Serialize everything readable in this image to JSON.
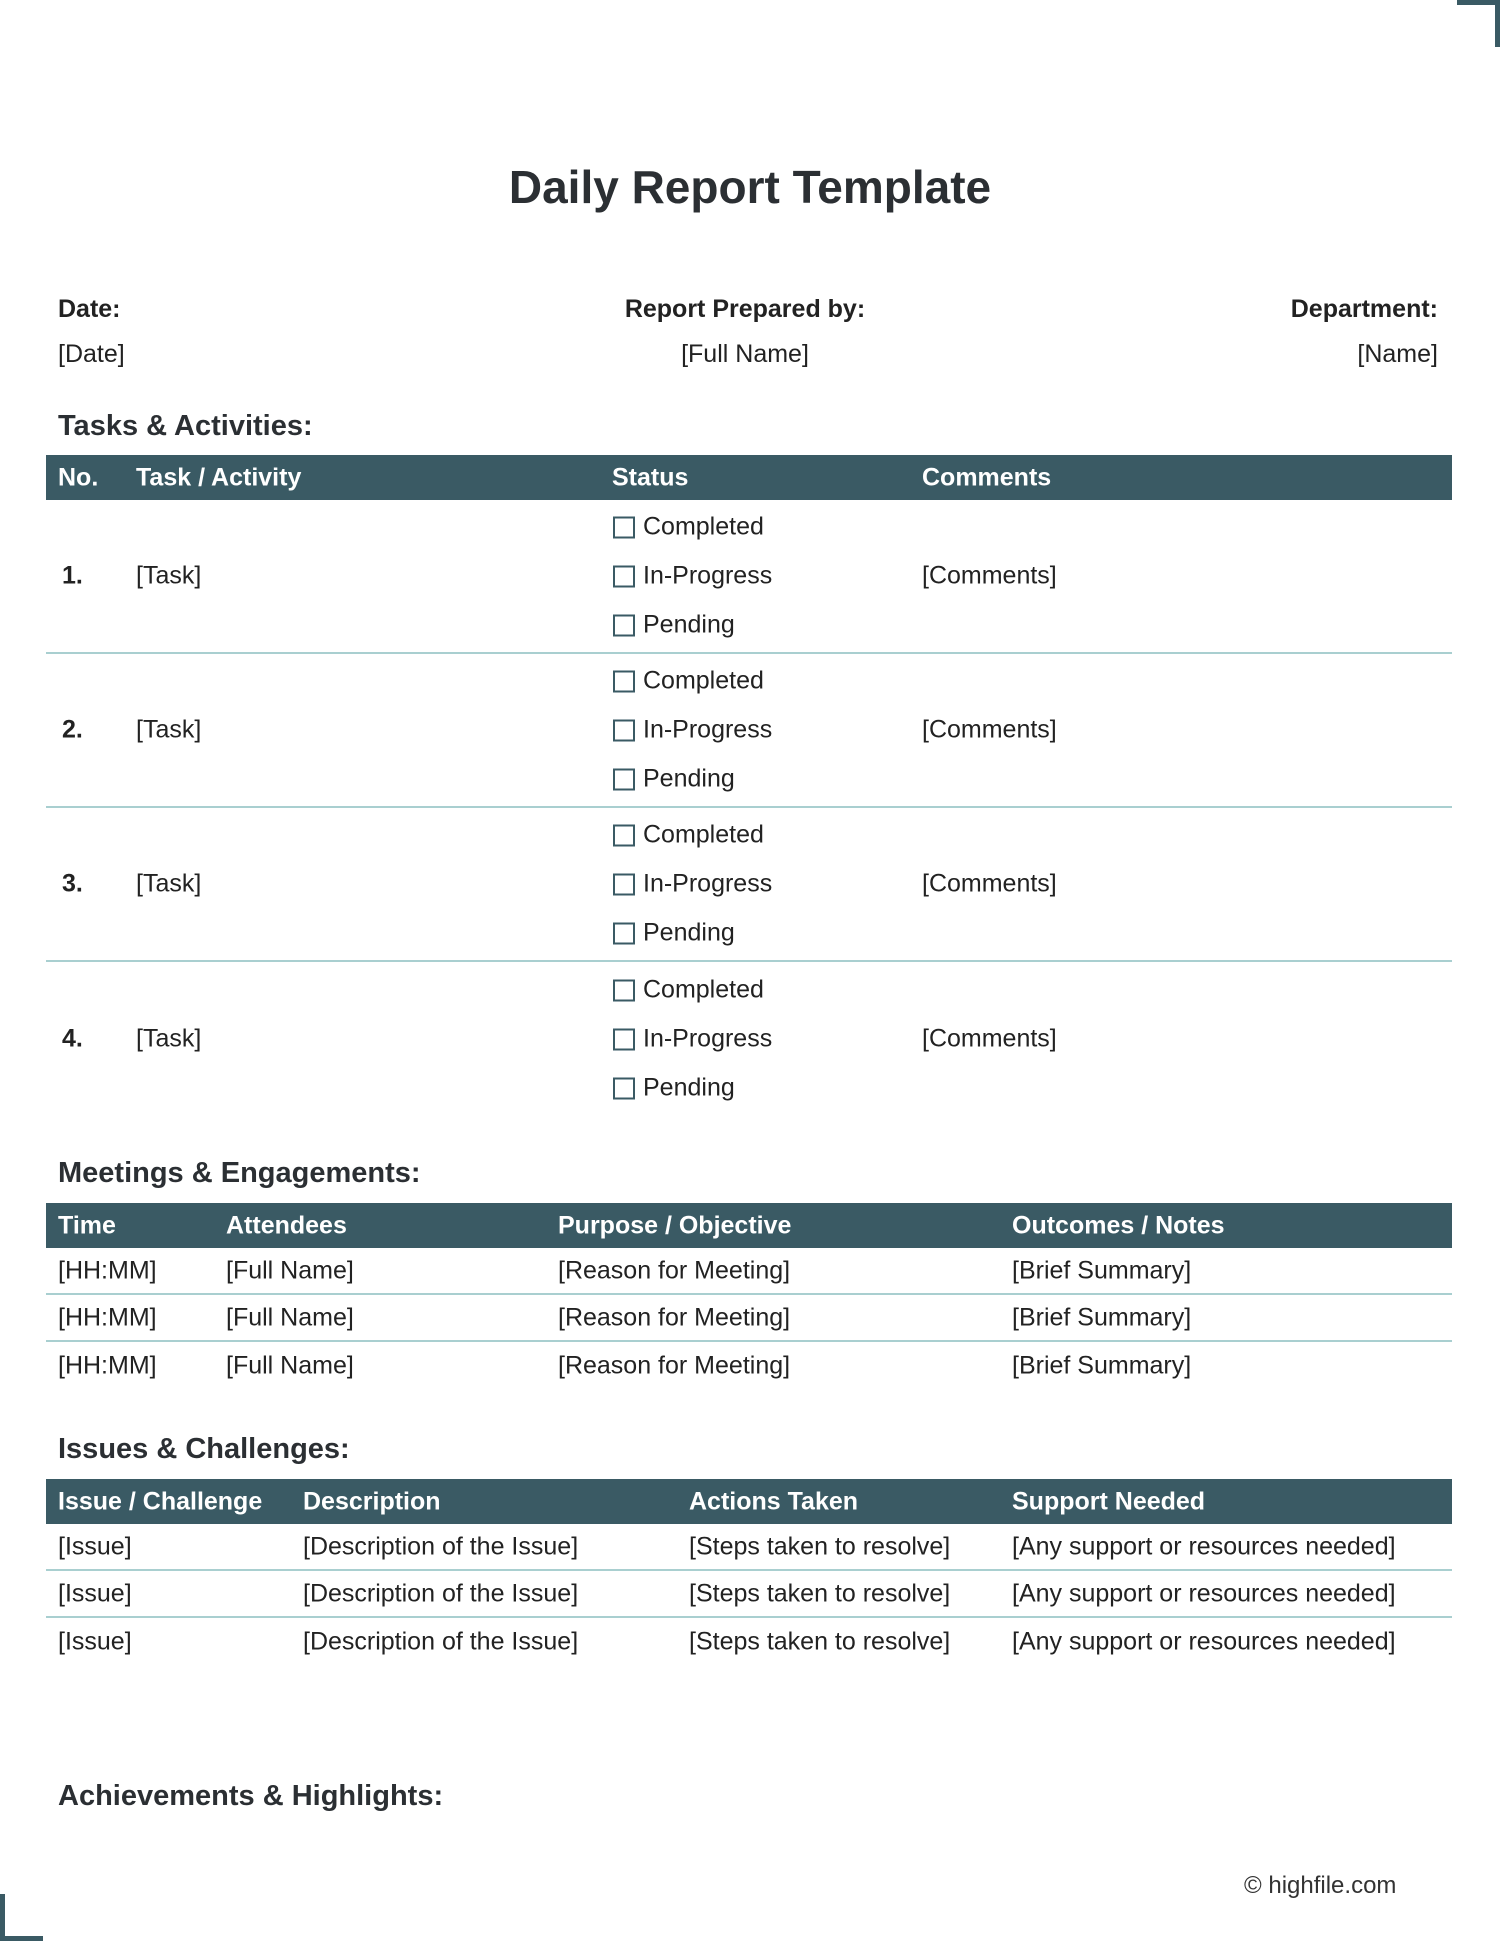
{
  "title": "Daily Report Template",
  "meta": {
    "date_label": "Date:",
    "date_value": "[Date]",
    "prepared_label": "Report Prepared by:",
    "prepared_value": "[Full Name]",
    "dept_label": "Department:",
    "dept_value": "[Name]"
  },
  "tasks": {
    "heading": "Tasks & Activities:",
    "columns": [
      "No.",
      "Task / Activity",
      "Status",
      "Comments"
    ],
    "status_options": [
      "Completed",
      "In-Progress",
      "Pending"
    ],
    "rows": [
      {
        "no": "1.",
        "task": "[Task]",
        "comments": "[Comments]"
      },
      {
        "no": "2.",
        "task": "[Task]",
        "comments": "[Comments]"
      },
      {
        "no": "3.",
        "task": "[Task]",
        "comments": "[Comments]"
      },
      {
        "no": "4.",
        "task": "[Task]",
        "comments": "[Comments]"
      }
    ]
  },
  "meetings": {
    "heading": "Meetings & Engagements:",
    "columns": [
      "Time",
      "Attendees",
      "Purpose / Objective",
      "Outcomes / Notes"
    ],
    "rows": [
      [
        "[HH:MM]",
        "[Full Name]",
        "[Reason for Meeting]",
        "[Brief Summary]"
      ],
      [
        "[HH:MM]",
        "[Full Name]",
        "[Reason for Meeting]",
        "[Brief Summary]"
      ],
      [
        "[HH:MM]",
        "[Full Name]",
        "[Reason for Meeting]",
        "[Brief Summary]"
      ]
    ]
  },
  "issues": {
    "heading": "Issues & Challenges:",
    "columns": [
      "Issue / Challenge",
      "Description",
      "Actions Taken",
      "Support Needed"
    ],
    "rows": [
      [
        "[Issue]",
        "[Description of the Issue]",
        "[Steps taken to resolve]",
        "[Any support or resources needed]"
      ],
      [
        "[Issue]",
        "[Description of the Issue]",
        "[Steps taken to resolve]",
        "[Any support or resources needed]"
      ],
      [
        "[Issue]",
        "[Description of the Issue]",
        "[Steps taken to resolve]",
        "[Any support or resources needed]"
      ]
    ]
  },
  "achievements": {
    "heading": "Achievements & Highlights:"
  },
  "footer": "© highfile.com",
  "colors": {
    "header": "#3a5a64",
    "divider": "#a9cfd0"
  }
}
